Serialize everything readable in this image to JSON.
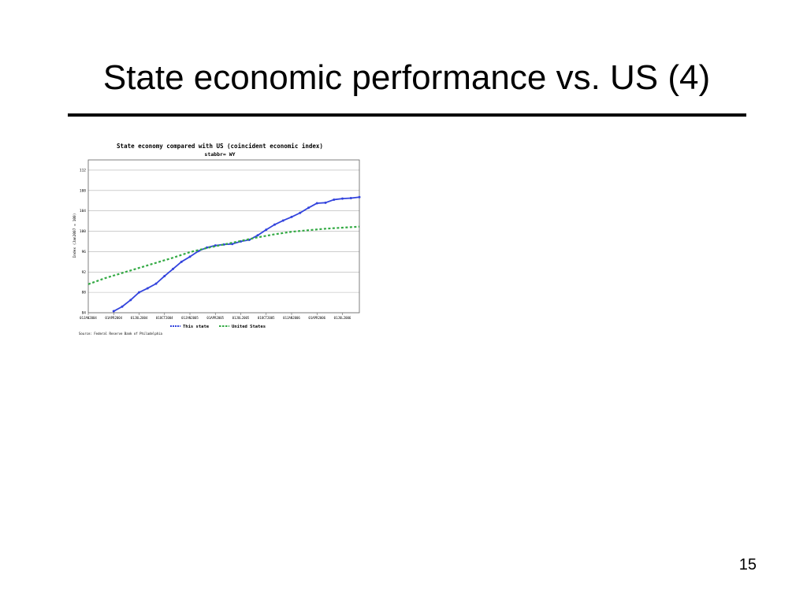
{
  "slide": {
    "title": "State economic performance vs. US (4)",
    "page_number": "15"
  },
  "chart_data": {
    "type": "line",
    "title": "State economy compared with US (coincident economic index)",
    "subtitle": "stabbr= WY",
    "ylabel": "Index (Jan2007 = 100)",
    "xlabel": "",
    "source": "Source: Federal Reserve Bank of Philadelphia",
    "ylim": [
      84,
      114
    ],
    "yticks": [
      84,
      88,
      92,
      96,
      100,
      104,
      108,
      112
    ],
    "xlim": [
      0,
      32
    ],
    "xtick_positions": [
      0,
      3,
      6,
      9,
      12,
      15,
      18,
      21,
      24,
      27,
      30
    ],
    "xtick_labels": [
      "01JAN2004",
      "01APR2004",
      "01JUL2004",
      "01OCT2004",
      "01JAN2005",
      "01APR2005",
      "01JUL2005",
      "01OCT2005",
      "01JAN2006",
      "01APR2006",
      "01JUL2006"
    ],
    "grid": true,
    "legend": "bottom",
    "series": [
      {
        "name": "This state",
        "color": "#3344dd",
        "style": "solid",
        "x": [
          3,
          4,
          5,
          6,
          7,
          8,
          9,
          10,
          11,
          12,
          13,
          14,
          15,
          16,
          17,
          18,
          19,
          20,
          21,
          22,
          23,
          24,
          25,
          26,
          27,
          28,
          29,
          30,
          31,
          32
        ],
        "values": [
          84.3,
          85.2,
          86.5,
          88.0,
          88.8,
          89.7,
          91.2,
          92.6,
          94.0,
          95.0,
          96.1,
          96.8,
          97.2,
          97.4,
          97.5,
          98.0,
          98.3,
          99.2,
          100.3,
          101.3,
          102.1,
          102.8,
          103.6,
          104.6,
          105.5,
          105.6,
          106.2,
          106.4,
          106.5,
          106.7
        ]
      },
      {
        "name": "United States",
        "color": "#33aa44",
        "style": "dashed",
        "x": [
          0,
          2,
          4,
          6,
          8,
          10,
          12,
          14,
          16,
          18,
          20,
          22,
          24,
          26,
          28,
          30,
          32
        ],
        "values": [
          89.6,
          90.8,
          91.8,
          92.8,
          93.8,
          94.8,
          95.9,
          96.7,
          97.4,
          98.1,
          98.8,
          99.4,
          99.9,
          100.2,
          100.5,
          100.7,
          100.9
        ]
      }
    ]
  }
}
